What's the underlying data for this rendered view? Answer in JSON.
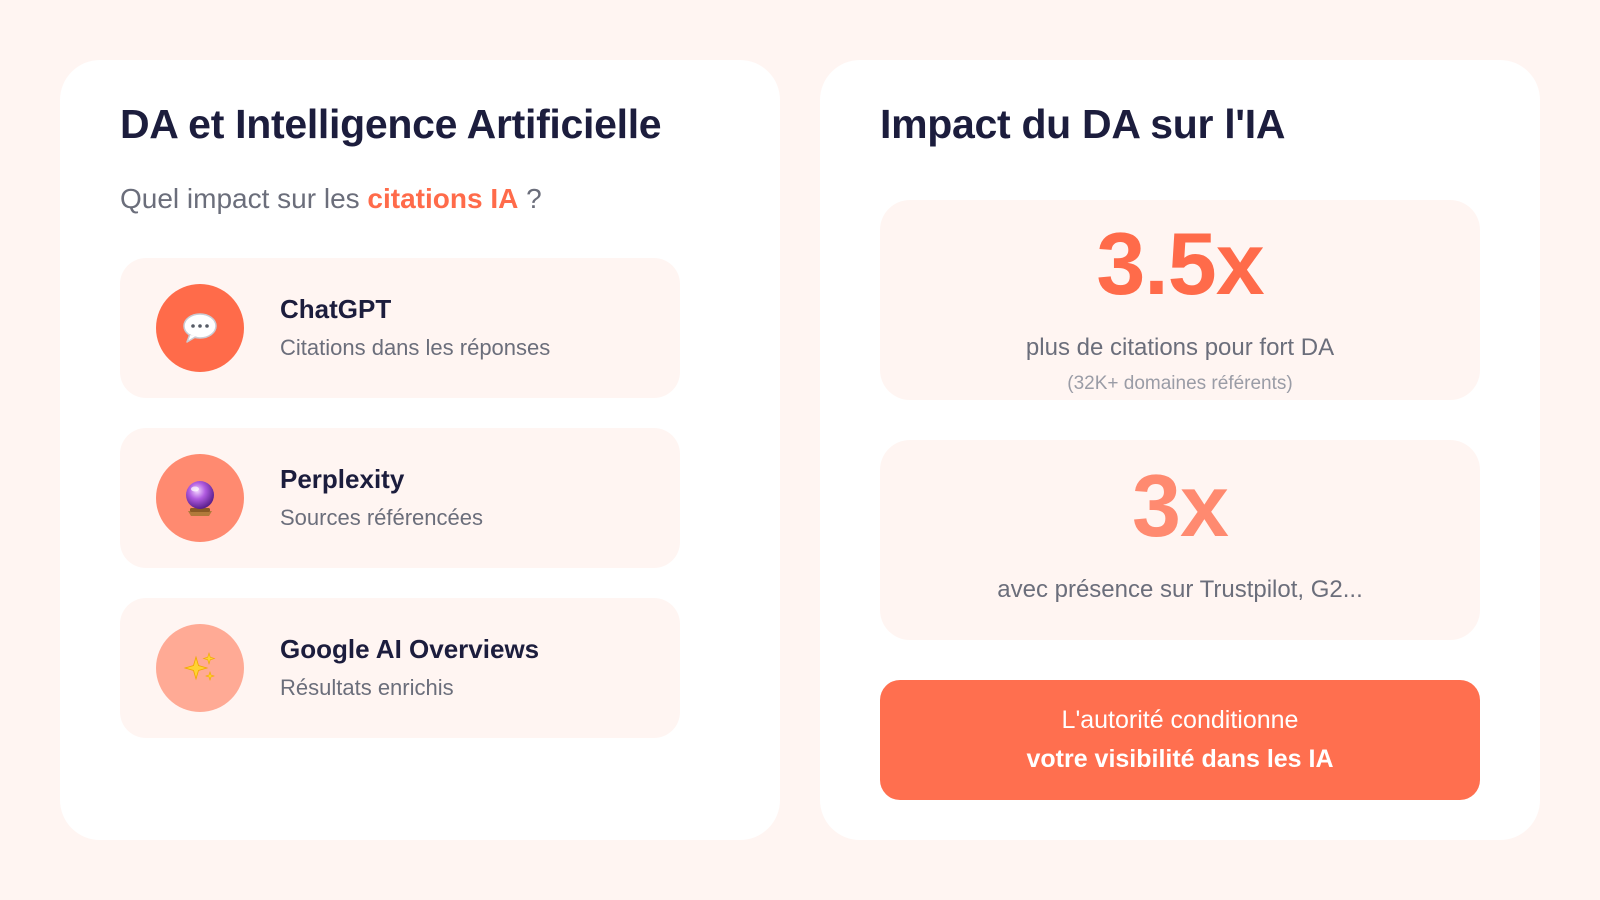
{
  "left": {
    "title": "DA et Intelligence Artificielle",
    "subtitle_prefix": "Quel impact sur les ",
    "subtitle_accent": "citations IA",
    "subtitle_suffix": " ?",
    "platforms": [
      {
        "name": "ChatGPT",
        "description": "Citations dans les réponses",
        "icon": "speech-bubble-icon",
        "color": "#ff6b4a"
      },
      {
        "name": "Perplexity",
        "description": "Sources référencées",
        "icon": "crystal-ball-icon",
        "color": "#ff8a70"
      },
      {
        "name": "Google AI Overviews",
        "description": "Résultats enrichis",
        "icon": "sparkles-icon",
        "color": "#ffaa95"
      }
    ]
  },
  "right": {
    "title": "Impact du DA sur l'IA",
    "stats": [
      {
        "value": "3.5x",
        "label": "plus de citations pour fort DA",
        "note": "(32K+ domaines référents)"
      },
      {
        "value": "3x",
        "label": "avec présence sur Trustpilot, G2..."
      }
    ],
    "callout": {
      "line1": "L'autorité conditionne",
      "line2": "votre visibilité dans les IA"
    }
  },
  "colors": {
    "background": "#fff5f2",
    "accent": "#ff6b4a",
    "title": "#1c1d3d",
    "muted": "#6b6e7b"
  }
}
